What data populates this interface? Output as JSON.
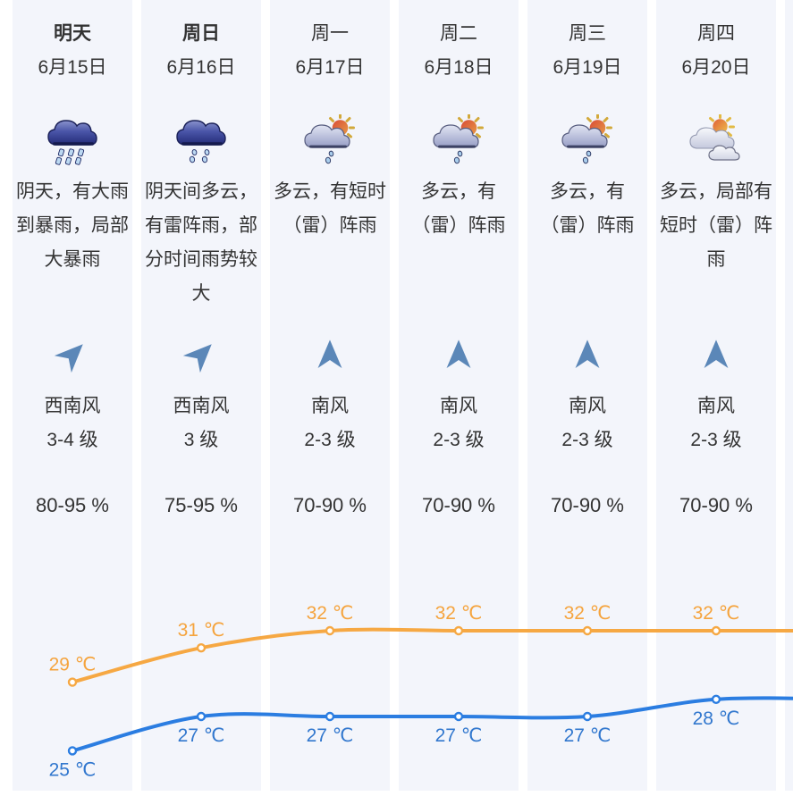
{
  "widget": {
    "kind": "six-day-weather-forecast"
  },
  "columns": [
    {
      "day": "明天",
      "date": "6月15日",
      "emphasis": true,
      "icon": "heavy-rain",
      "description": "阴天，有大雨到暴雨，局部大暴雨",
      "wind": {
        "direction": "西南风",
        "level": "3-4 级",
        "arrow": "northeast"
      },
      "humidity": "80-95 %"
    },
    {
      "day": "周日",
      "date": "6月16日",
      "emphasis": true,
      "icon": "rain",
      "description": "阴天间多云，有雷阵雨，部分时间雨势较大",
      "wind": {
        "direction": "西南风",
        "level": "3 级",
        "arrow": "northeast"
      },
      "humidity": "75-95 %"
    },
    {
      "day": "周一",
      "date": "6月17日",
      "emphasis": false,
      "icon": "cloud-sun-rain",
      "description": "多云，有短时（雷）阵雨",
      "wind": {
        "direction": "南风",
        "level": "2-3 级",
        "arrow": "north"
      },
      "humidity": "70-90 %"
    },
    {
      "day": "周二",
      "date": "6月18日",
      "emphasis": false,
      "icon": "cloud-sun-rain",
      "description": "多云，有（雷）阵雨",
      "wind": {
        "direction": "南风",
        "level": "2-3 级",
        "arrow": "north"
      },
      "humidity": "70-90 %"
    },
    {
      "day": "周三",
      "date": "6月19日",
      "emphasis": false,
      "icon": "cloud-sun-rain",
      "description": "多云，有（雷）阵雨",
      "wind": {
        "direction": "南风",
        "level": "2-3 级",
        "arrow": "north"
      },
      "humidity": "70-90 %"
    },
    {
      "day": "周四",
      "date": "6月20日",
      "emphasis": false,
      "icon": "partly-cloudy",
      "description": "多云，局部有短时（雷）阵雨",
      "wind": {
        "direction": "南风",
        "level": "2-3 级",
        "arrow": "north"
      },
      "humidity": "70-90 %"
    }
  ],
  "chart_data": {
    "type": "line",
    "categories": [
      "6月15日",
      "6月16日",
      "6月17日",
      "6月18日",
      "6月19日",
      "6月20日"
    ],
    "series": [
      {
        "name": "high-temperature",
        "values": [
          29,
          31,
          32,
          32,
          32,
          32
        ],
        "color": "#F6A843",
        "label_color": "#F5A43E",
        "unit": "℃"
      },
      {
        "name": "low-temperature",
        "values": [
          25,
          27,
          27,
          27,
          27,
          28
        ],
        "color": "#2B7DE1",
        "label_color": "#3177CE",
        "unit": "℃"
      }
    ],
    "label_format": "{value} ℃",
    "smooth": true,
    "markers": "hollow-circle",
    "legend": false,
    "grid": false,
    "axes_hidden": true
  },
  "colors": {
    "column_background": "#F3F5FB",
    "text": "#333333",
    "wind_arrow": "#5B87B8",
    "high_line": "#F6A843",
    "low_line": "#2B7DE1"
  }
}
